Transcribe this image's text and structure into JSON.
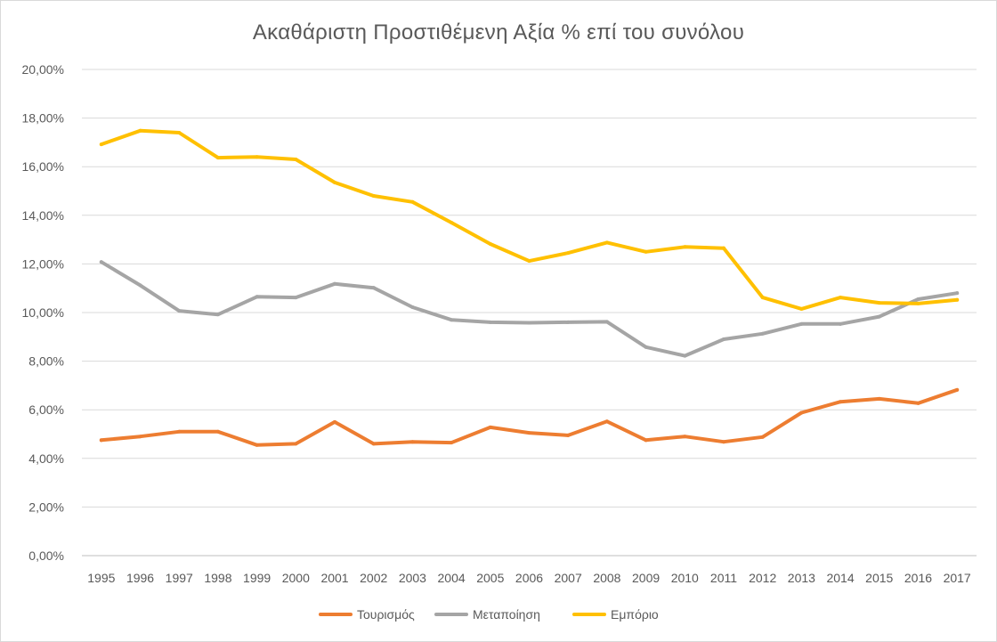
{
  "chart_data": {
    "type": "line",
    "title": "Ακαθάριστη Προστιθέμενη Αξία % επί του συνόλου",
    "xlabel": "",
    "ylabel": "",
    "ylim": [
      0,
      20
    ],
    "y_ticks": [
      0,
      2,
      4,
      6,
      8,
      10,
      12,
      14,
      16,
      18,
      20
    ],
    "y_tick_labels": [
      "0,00%",
      "2,00%",
      "4,00%",
      "6,00%",
      "8,00%",
      "10,00%",
      "12,00%",
      "14,00%",
      "16,00%",
      "18,00%",
      "20,00%"
    ],
    "grid": true,
    "legend_position": "bottom",
    "categories": [
      "1995",
      "1996",
      "1997",
      "1998",
      "1999",
      "2000",
      "2001",
      "2002",
      "2003",
      "2004",
      "2005",
      "2006",
      "2007",
      "2008",
      "2009",
      "2010",
      "2011",
      "2012",
      "2013",
      "2014",
      "2015",
      "2016",
      "2017"
    ],
    "series": [
      {
        "name": "Τουρισμός",
        "color": "#ed7d31",
        "values": [
          4.75,
          4.9,
          5.1,
          5.1,
          4.55,
          4.6,
          5.5,
          4.6,
          4.68,
          4.65,
          5.28,
          5.05,
          4.95,
          5.52,
          4.75,
          4.9,
          4.68,
          4.88,
          5.88,
          6.33,
          6.45,
          6.27,
          6.82
        ]
      },
      {
        "name": "Μεταποίηση",
        "color": "#a5a5a5",
        "values": [
          12.08,
          11.12,
          10.07,
          9.92,
          10.65,
          10.62,
          11.18,
          11.02,
          10.22,
          9.7,
          9.6,
          9.58,
          9.6,
          9.62,
          8.58,
          8.22,
          8.9,
          9.13,
          9.53,
          9.53,
          9.83,
          10.55,
          10.8
        ]
      },
      {
        "name": "Εμπόριο",
        "color": "#ffc000",
        "values": [
          16.92,
          17.48,
          17.4,
          16.37,
          16.4,
          16.3,
          15.35,
          14.8,
          14.55,
          13.7,
          12.82,
          12.12,
          12.45,
          12.88,
          12.5,
          12.7,
          12.65,
          10.62,
          10.15,
          10.62,
          10.4,
          10.37,
          10.52
        ]
      }
    ]
  }
}
